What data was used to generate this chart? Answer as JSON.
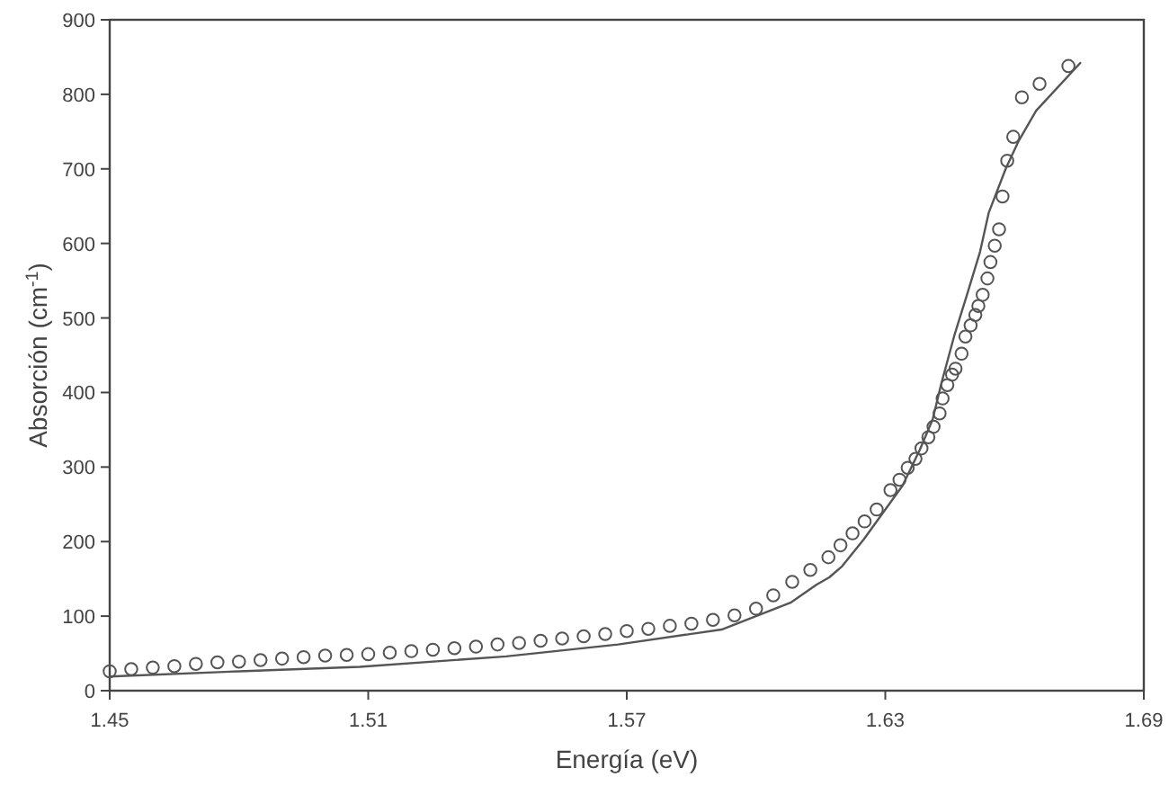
{
  "chart_data": {
    "type": "scatter",
    "xlabel": "Energía (eV)",
    "ylabel": "Absorción (cm$^{-1}$)",
    "xlim": [
      1.45,
      1.69
    ],
    "xticks": [
      1.45,
      1.51,
      1.57,
      1.63,
      1.69
    ],
    "ylim": [
      0,
      900
    ],
    "yticks": [
      0,
      100,
      200,
      300,
      400,
      500,
      600,
      700,
      800,
      900
    ],
    "grid": false,
    "series": [
      {
        "marker": "circle",
        "color": "#555555",
        "x": [
          1.45,
          1.455,
          1.46,
          1.465,
          1.47,
          1.475,
          1.48,
          1.485,
          1.49,
          1.495,
          1.5,
          1.505,
          1.51,
          1.515,
          1.52,
          1.525,
          1.53,
          1.535,
          1.54,
          1.545,
          1.55,
          1.555,
          1.56,
          1.565,
          1.57,
          1.575,
          1.58,
          1.585,
          1.59,
          1.595,
          1.6,
          1.604,
          1.6084,
          1.6126,
          1.6168,
          1.6196,
          1.6224,
          1.6252,
          1.628,
          1.6312,
          1.6333,
          1.6352,
          1.637,
          1.6384,
          1.64,
          1.6412,
          1.6426,
          1.6433,
          1.6444,
          1.6455,
          1.6463,
          1.6477,
          1.6486,
          1.6498,
          1.6509,
          1.6516,
          1.6526,
          1.6537,
          1.6544,
          1.6554,
          1.6564,
          1.6572,
          1.6583,
          1.6597,
          1.6617,
          1.6658,
          1.6725
        ],
        "values": [
          26,
          29,
          31,
          33,
          36,
          38,
          39,
          41,
          43,
          45,
          47,
          48,
          49,
          51,
          53,
          55,
          57,
          59,
          62,
          64,
          67,
          70,
          73,
          76,
          80,
          83,
          87,
          90,
          95,
          101,
          110,
          128,
          146,
          162,
          179,
          195,
          211,
          227,
          243,
          269,
          283,
          299,
          311,
          325,
          340,
          354,
          372,
          392,
          410,
          424,
          432,
          452,
          475,
          490,
          504,
          516,
          531,
          553,
          575,
          597,
          619,
          663,
          711,
          743,
          796,
          814,
          838
        ]
      },
      {
        "type": "line",
        "marker": "none",
        "line_style": "solid",
        "color": "#555555",
        "x": [
          1.45,
          1.48,
          1.508,
          1.542,
          1.568,
          1.592,
          1.608,
          1.614,
          1.617,
          1.62,
          1.625,
          1.629,
          1.634,
          1.638,
          1.641,
          1.643,
          1.646,
          1.649,
          1.652,
          1.654,
          1.658,
          1.661,
          1.665,
          1.6754
        ],
        "values": [
          19,
          26,
          32,
          46,
          62,
          82,
          118,
          142,
          152,
          167,
          203,
          235,
          275,
          323,
          364,
          412,
          476,
          532,
          589,
          641,
          701,
          738,
          778,
          843
        ]
      }
    ]
  }
}
